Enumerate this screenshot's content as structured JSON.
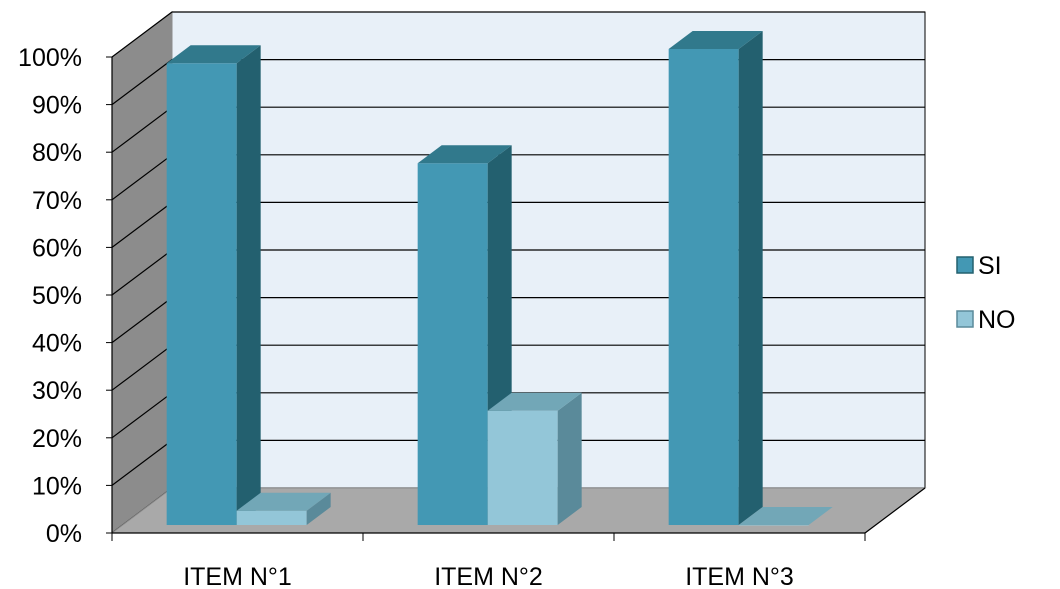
{
  "chart_data": {
    "type": "bar",
    "categories": [
      "ITEM N°1",
      "ITEM N°2",
      "ITEM N°3"
    ],
    "series": [
      {
        "name": "SI",
        "values": [
          97,
          76,
          100
        ],
        "color": "#4398B4",
        "side_color": "#23606F",
        "top_color": "#31798C"
      },
      {
        "name": "NO",
        "values": [
          3,
          24,
          0
        ],
        "color": "#93C6D8",
        "side_color": "#5A8A9A",
        "top_color": "#72A7B7"
      }
    ],
    "yticks": [
      "0%",
      "10%",
      "20%",
      "30%",
      "40%",
      "50%",
      "60%",
      "70%",
      "80%",
      "90%",
      "100%"
    ],
    "ylim": [
      0,
      100
    ],
    "grid": true,
    "legend": "right",
    "wall_color": "#E8F0F8",
    "side_wall_color": "#8C8C8C",
    "floor_color": "#A9A9A9"
  }
}
